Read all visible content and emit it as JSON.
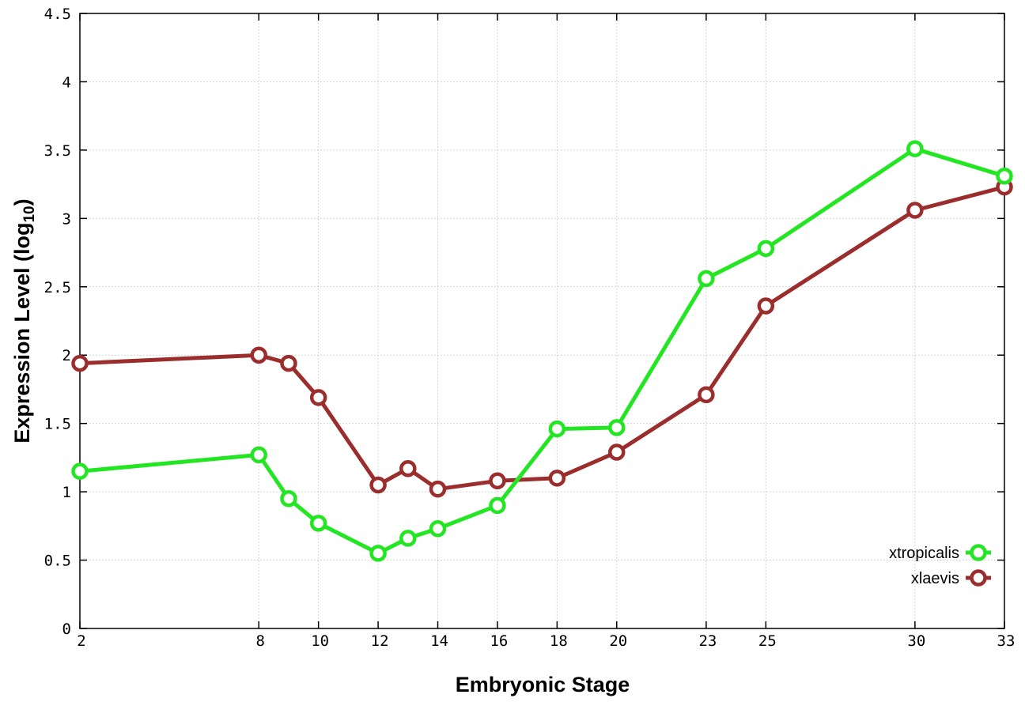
{
  "chart_data": {
    "type": "line",
    "xlabel": "Embryonic Stage",
    "ylabel": "Expression Level (log10)",
    "ylabel_main": "Expression Level (log",
    "ylabel_sub": "10",
    "ylabel_close": ")",
    "xlim": [
      2,
      33
    ],
    "ylim": [
      0,
      4.5
    ],
    "x": [
      2,
      8,
      9,
      10,
      12,
      13,
      14,
      16,
      18,
      20,
      23,
      25,
      30,
      33
    ],
    "x_ticks": [
      2,
      8,
      10,
      12,
      14,
      16,
      18,
      20,
      23,
      25,
      30,
      33
    ],
    "y_ticks": [
      "0",
      "0.5",
      "1",
      "1.5",
      "2",
      "2.5",
      "3",
      "3.5",
      "4",
      "4.5"
    ],
    "grid": true,
    "legend_position": "bottom-right",
    "series": [
      {
        "name": "xtropicalis",
        "color": "#22e622",
        "values": [
          1.15,
          1.27,
          0.95,
          0.77,
          0.55,
          0.66,
          0.73,
          0.9,
          1.46,
          1.47,
          2.56,
          2.78,
          3.51,
          3.31
        ]
      },
      {
        "name": "xlaevis",
        "color": "#9b2d2d",
        "values": [
          1.94,
          2.0,
          1.94,
          1.69,
          1.05,
          1.17,
          1.02,
          1.08,
          1.1,
          1.29,
          1.71,
          2.36,
          3.06,
          3.23
        ]
      }
    ]
  }
}
